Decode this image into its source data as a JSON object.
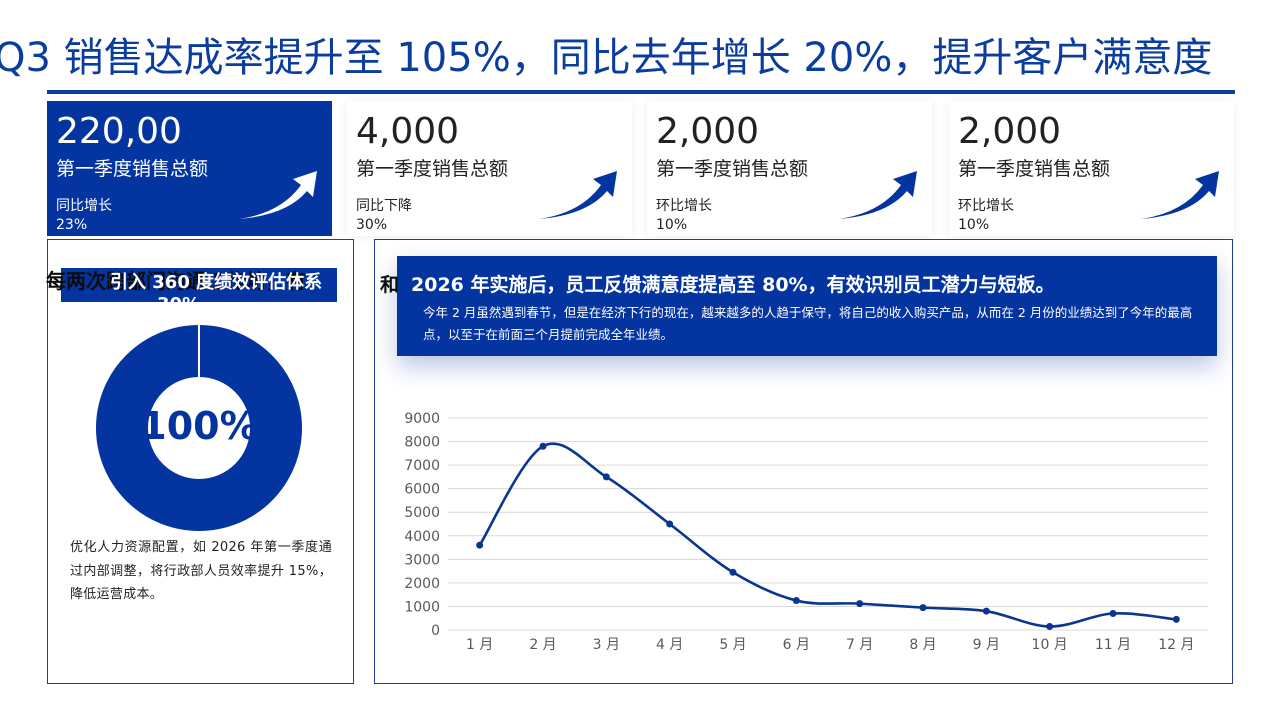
{
  "headline": "Q3 销售达成率提升至 105%，同比去年增长 20%，提升客户满意度",
  "cards": [
    {
      "value": "220,00",
      "label": "第一季度销售总额",
      "sub": "同比增长",
      "pct": "23%"
    },
    {
      "value": "4,000",
      "label": "第一季度销售总额",
      "sub": "同比下降",
      "pct": "30%"
    },
    {
      "value": "2,000",
      "label": "第一季度销售总额",
      "sub": "环比增长",
      "pct": "10%"
    },
    {
      "value": "2,000",
      "label": "第一季度销售总额",
      "sub": "环比增长",
      "pct": "10%"
    }
  ],
  "left_panel": {
    "overlap_1": "每两次跨部门沟通工作坊，有",
    "overlap_2": "引入 360 度绩效评估体系",
    "overlap_3": "30%",
    "donut_label": "100%",
    "donut_value": 100,
    "body": "优化人力资源配置，如 2026 年第一季度通过内部调整，将行政部人员效率提升 15%，降低运营成本。"
  },
  "right_panel": {
    "overlap_prefix": "和",
    "banner_title": "2026 年实施后，员工反馈满意度提高至 80%，有效识别员工潜力与短板。",
    "banner_text": "今年 2 月虽然遇到春节，但是在经济下行的现在，越来越多的人趋于保守，将自己的收入购买产品，从而在 2 月份的业绩达到了今年的最高点，以至于在前面三个月提前完成全年业绩。"
  },
  "colors": {
    "primary": "#03349f",
    "line": "#0a3591",
    "grid": "#d9d9d9",
    "axis_text": "#595959"
  },
  "chart_data": {
    "type": "line",
    "smooth": true,
    "markers": true,
    "categories": [
      "1 月",
      "2 月",
      "3 月",
      "4 月",
      "5 月",
      "6 月",
      "7 月",
      "8 月",
      "9 月",
      "10 月",
      "11 月",
      "12 月"
    ],
    "values": [
      3600,
      7800,
      6500,
      4500,
      2450,
      1250,
      1120,
      950,
      800,
      150,
      700,
      450
    ],
    "yticks": [
      0,
      1000,
      2000,
      3000,
      4000,
      5000,
      6000,
      7000,
      8000,
      9000
    ],
    "ylim": [
      0,
      9000
    ],
    "grid": true,
    "legend": "none"
  }
}
